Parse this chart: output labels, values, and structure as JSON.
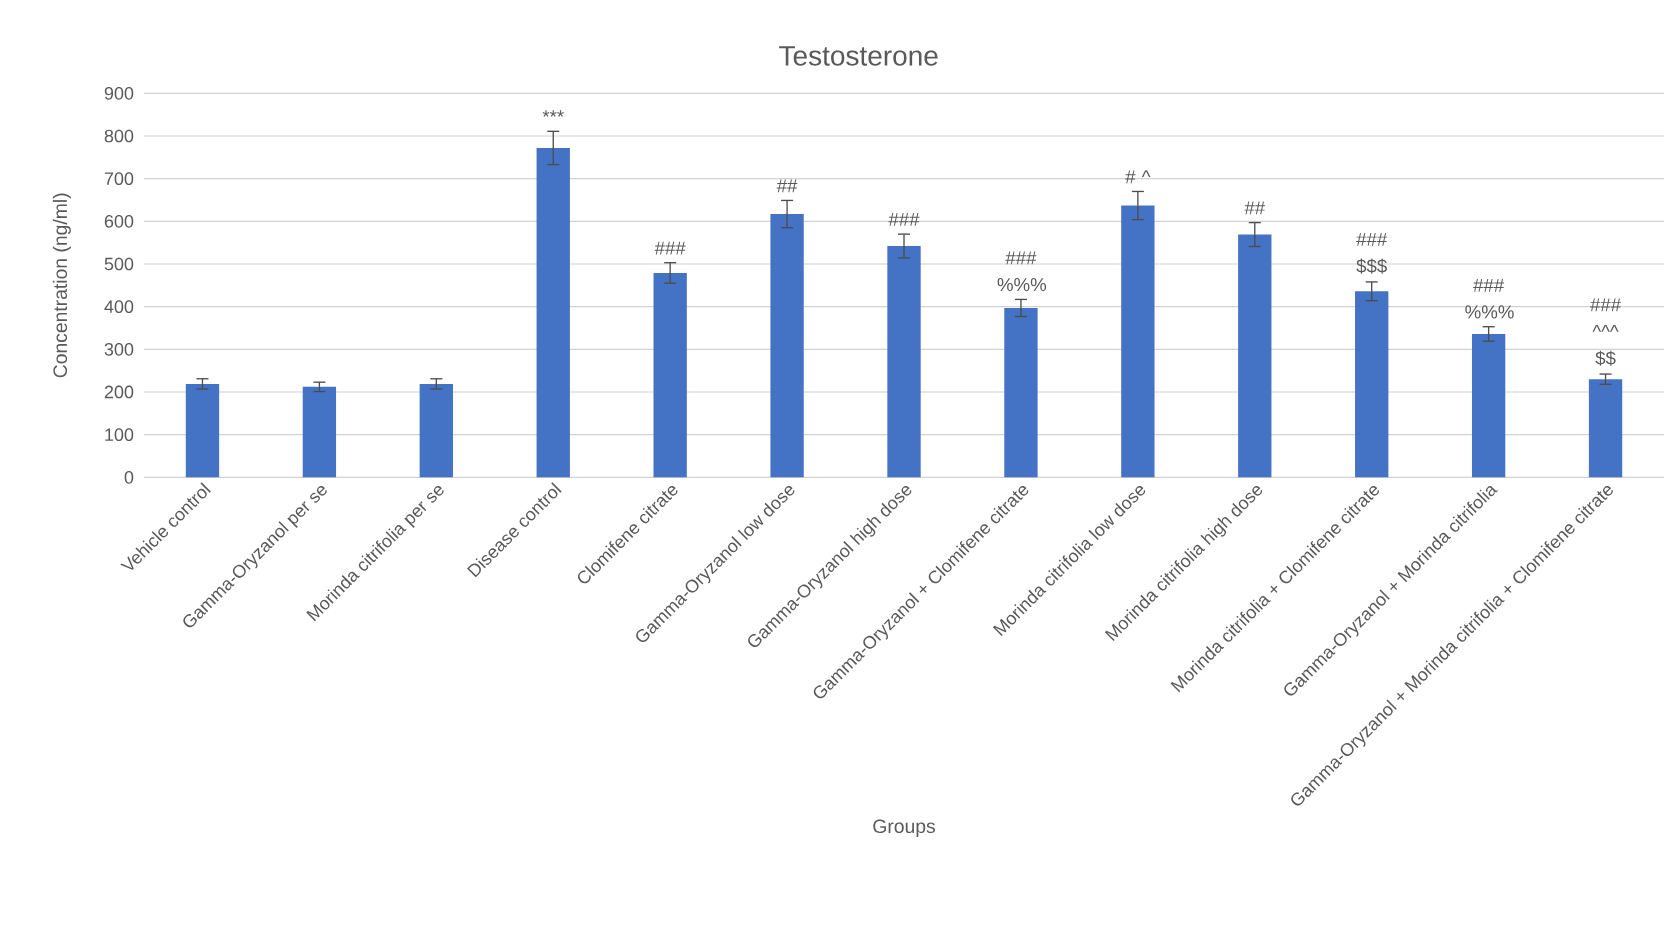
{
  "chart_data": {
    "type": "bar",
    "title": "Testosterone",
    "xlabel": "Groups",
    "ylabel": "Concentration (ng/ml)",
    "categories": [
      "Vehicle control",
      "Gamma-Oryzanol per se",
      "Morinda citrifolia per se",
      "Disease control",
      "Clomifene citrate",
      "Gamma-Oryzanol low dose",
      "Gamma-Oryzanol high dose",
      "Gamma-Oryzanol + Clomifene citrate",
      "Morinda citrifolia low dose",
      "Morinda citrifolia high dose",
      "Morinda citrifolia + Clomifene citrate",
      "Gamma-Oryzanol + Morinda citrifolia",
      "Gamma-Oryzanol + Morinda citrifolia + Clomifene citrate"
    ],
    "values": [
      219,
      212,
      219,
      772,
      479,
      617,
      542,
      397,
      637,
      569,
      436,
      336,
      230
    ],
    "errors": [
      12,
      11,
      12,
      39,
      24,
      32,
      28,
      20,
      33,
      28,
      22,
      17,
      12
    ],
    "value_labels": [
      null,
      null,
      null,
      "***",
      "###",
      "##",
      "###",
      "### %%%",
      "# ^",
      "##",
      "### $$$",
      "### %%%",
      "### ^^^ $$"
    ],
    "color": "#4472c4",
    "ylim": [
      0,
      900
    ],
    "yticks": [
      0,
      100,
      200,
      300,
      400,
      500,
      600,
      700,
      800,
      900
    ],
    "grid": "y"
  }
}
